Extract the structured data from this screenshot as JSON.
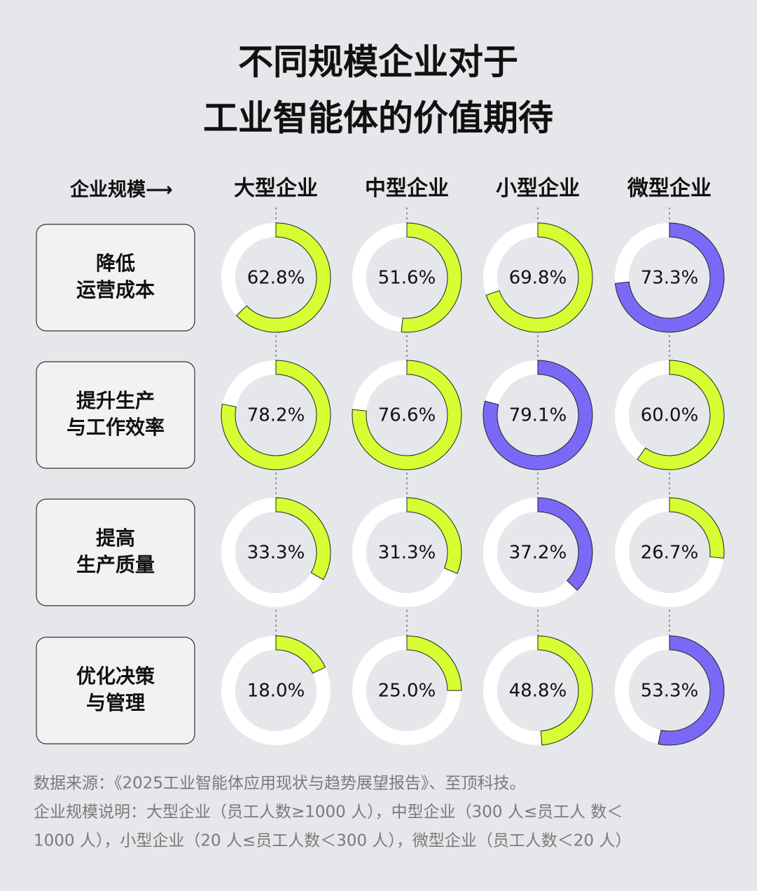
{
  "chart_data": {
    "type": "donut",
    "title": [
      "不同规模企业对于",
      "工业智能体的价值期待"
    ],
    "header_label": "企业规模⟶",
    "categories": [
      "大型企业",
      "中型企业",
      "小型企业",
      "微型企业"
    ],
    "series": [
      {
        "name": [
          "降低",
          "运营成本"
        ],
        "values": [
          62.8,
          51.6,
          69.8,
          73.3
        ],
        "value_labels": [
          "62.8%",
          "51.6%",
          "69.8%",
          "73.3%"
        ],
        "colors": [
          "#d6ff33",
          "#d6ff33",
          "#d6ff33",
          "#7b68f7"
        ]
      },
      {
        "name": [
          "提升生产",
          "与工作效率"
        ],
        "values": [
          78.2,
          76.6,
          79.1,
          60.0
        ],
        "value_labels": [
          "78.2%",
          "76.6%",
          "79.1%",
          "60.0%"
        ],
        "colors": [
          "#d6ff33",
          "#d6ff33",
          "#7b68f7",
          "#d6ff33"
        ]
      },
      {
        "name": [
          "提高",
          "生产质量"
        ],
        "values": [
          33.3,
          31.3,
          37.2,
          26.7
        ],
        "value_labels": [
          "33.3%",
          "31.3%",
          "37.2%",
          "26.7%"
        ],
        "colors": [
          "#d6ff33",
          "#d6ff33",
          "#7b68f7",
          "#d6ff33"
        ]
      },
      {
        "name": [
          "优化决策",
          "与管理"
        ],
        "values": [
          18.0,
          25.0,
          48.8,
          53.3
        ],
        "value_labels": [
          "18.0%",
          "25.0%",
          "48.8%",
          "53.3%"
        ],
        "colors": [
          "#d6ff33",
          "#d6ff33",
          "#d6ff33",
          "#7b68f7"
        ]
      }
    ],
    "notes": [
      "数据来源：《2025工业智能体应用现状与趋势展望报告》、至顶科技。",
      "企业规模说明：大型企业（员工人数≥1000 人），中型企业（300 人≤员工人 数＜",
      "1000 人），小型企业（20 人≤员工人数＜300 人），微型企业（员工人数＜20 人）"
    ]
  }
}
